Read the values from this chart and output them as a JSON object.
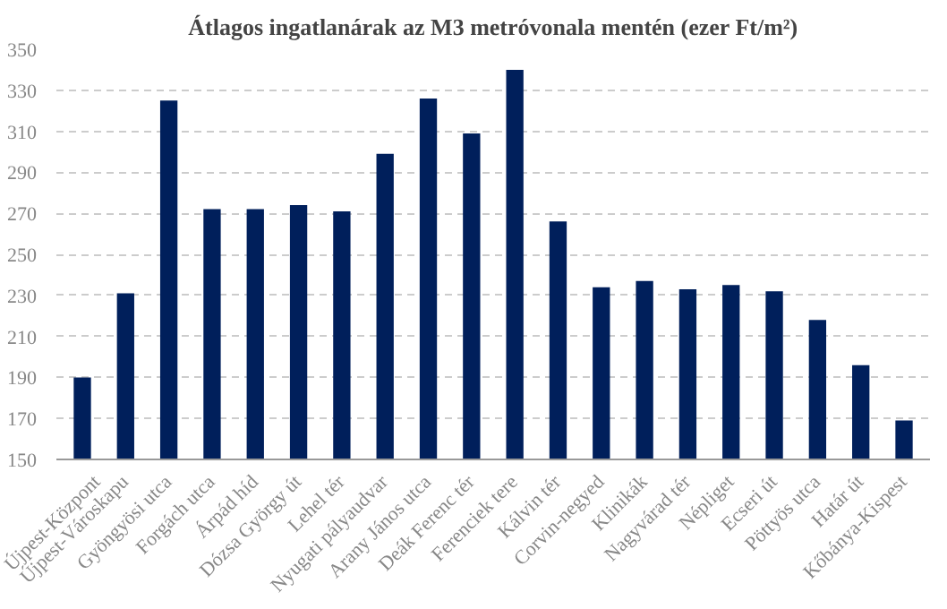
{
  "chart_data": {
    "type": "bar",
    "title": "Átlagos ingatlanárak az M3 metróvonala mentén (ezer Ft/m²)",
    "categories": [
      "Újpest-Központ",
      "Újpest-Városkapu",
      "Gyöngyösi utca",
      "Forgách utca",
      "Árpád híd",
      "Dózsa György út",
      "Lehel tér",
      "Nyugati pályaudvar",
      "Arany János utca",
      "Deák Ferenc tér",
      "Ferenciek tere",
      "Kálvin tér",
      "Corvin-negyed",
      "Klinikák",
      "Nagyvárad tér",
      "Népliget",
      "Ecseri út",
      "Pöttyös utca",
      "Határ út",
      "Kőbánya-Kispest"
    ],
    "values": [
      190,
      231,
      325,
      272,
      272,
      274,
      271,
      299,
      326,
      309,
      340,
      266,
      234,
      237,
      233,
      235,
      232,
      218,
      196,
      169
    ],
    "color": "#001f5b",
    "ylim": [
      150,
      350
    ],
    "yticks": [
      150,
      170,
      190,
      210,
      230,
      250,
      270,
      290,
      310,
      330,
      350
    ],
    "grid": "y"
  }
}
